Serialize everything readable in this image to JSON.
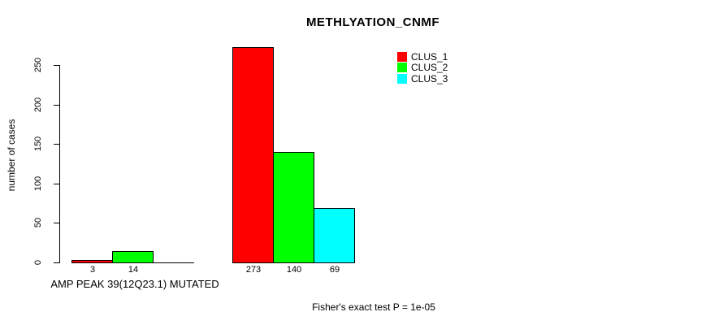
{
  "title": "METHLYATION_CNMF",
  "chart_data": {
    "type": "bar",
    "title": "METHLYATION_CNMF",
    "ylabel": "number of cases",
    "xlabel": "AMP PEAK 39(12Q23.1) MUTATED",
    "ylim": [
      0,
      250
    ],
    "yticks": [
      0,
      50,
      100,
      150,
      200,
      250
    ],
    "grid": false,
    "legend_position": "top-right",
    "series": [
      {
        "name": "CLUS_1",
        "color": "#ff0000"
      },
      {
        "name": "CLUS_2",
        "color": "#00ff00"
      },
      {
        "name": "CLUS_3",
        "color": "#00ffff"
      }
    ],
    "groups": [
      {
        "label": "AMP PEAK 39(12Q23.1) MUTATED",
        "values": [
          3,
          14,
          0
        ],
        "value_labels": [
          "3",
          "14",
          ""
        ]
      },
      {
        "label": "",
        "values": [
          273,
          140,
          69
        ],
        "value_labels": [
          "273",
          "140",
          "69"
        ]
      }
    ]
  },
  "annotations": {
    "fisher_note": "Fisher's exact test P = 1e-05"
  },
  "colors": {
    "background": "#ffffff",
    "axis": "#000000",
    "text": "#000000"
  }
}
